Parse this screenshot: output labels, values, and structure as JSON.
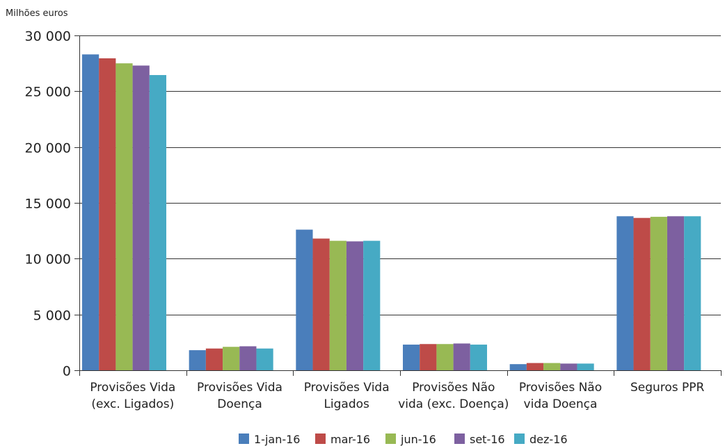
{
  "chart_data": {
    "type": "bar",
    "unit_label": "Milhões euros",
    "ylim": [
      0,
      30000
    ],
    "yticks": [
      0,
      5000,
      10000,
      15000,
      20000,
      25000,
      30000
    ],
    "ytick_labels": [
      "0",
      "5 000",
      "10 000",
      "15 000",
      "20 000",
      "25 000",
      "30 000"
    ],
    "grid": true,
    "legend_position": "bottom",
    "categories": [
      [
        "Provisões Vida",
        "(exc. Ligados)"
      ],
      [
        "Provisões Vida",
        "Doença"
      ],
      [
        "Provisões Vida",
        "Ligados"
      ],
      [
        "Provisões Não",
        "vida (exc. Doença)"
      ],
      [
        "Provisões Não",
        "vida Doença"
      ],
      [
        "Seguros PPR"
      ]
    ],
    "series": [
      {
        "name": "1-jan-16",
        "color": "#4a7ebb",
        "values": [
          28300,
          1800,
          12600,
          2300,
          550,
          13800
        ]
      },
      {
        "name": "mar-16",
        "color": "#be4b48",
        "values": [
          27950,
          1950,
          11800,
          2350,
          650,
          13650
        ]
      },
      {
        "name": "jun-16",
        "color": "#98b954",
        "values": [
          27500,
          2100,
          11600,
          2350,
          650,
          13750
        ]
      },
      {
        "name": "set-16",
        "color": "#7d60a0",
        "values": [
          27300,
          2150,
          11550,
          2400,
          600,
          13800
        ]
      },
      {
        "name": "dez-16",
        "color": "#46aac4",
        "values": [
          26450,
          1950,
          11600,
          2300,
          600,
          13800
        ]
      }
    ]
  }
}
